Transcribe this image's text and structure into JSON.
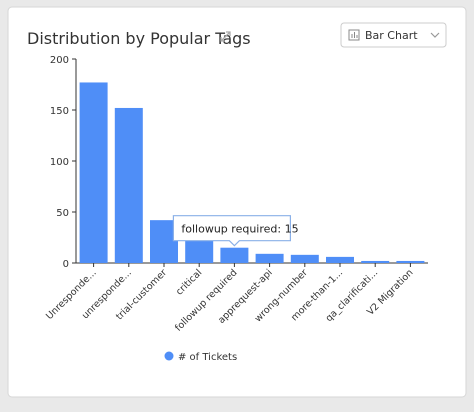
{
  "chart_data": {
    "type": "bar",
    "title": "Distribution by Popular Tags",
    "chart_selector": "Bar Chart",
    "categories": [
      "Unresponde...",
      "unresponde...",
      "trial-customer",
      "critical",
      "followup required",
      "apprequest-api",
      "wrong-number",
      "more-than-1...",
      "qa_clarificati...",
      "V2 Migration"
    ],
    "series": [
      {
        "name": "# of Tickets",
        "color": "#4f8ef7",
        "values": [
          177,
          152,
          42,
          28,
          15,
          9,
          8,
          6,
          2,
          2
        ]
      }
    ],
    "ylim": [
      0,
      200
    ],
    "yticks": [
      0,
      50,
      100,
      150,
      200
    ],
    "tooltip_index": 4
  }
}
